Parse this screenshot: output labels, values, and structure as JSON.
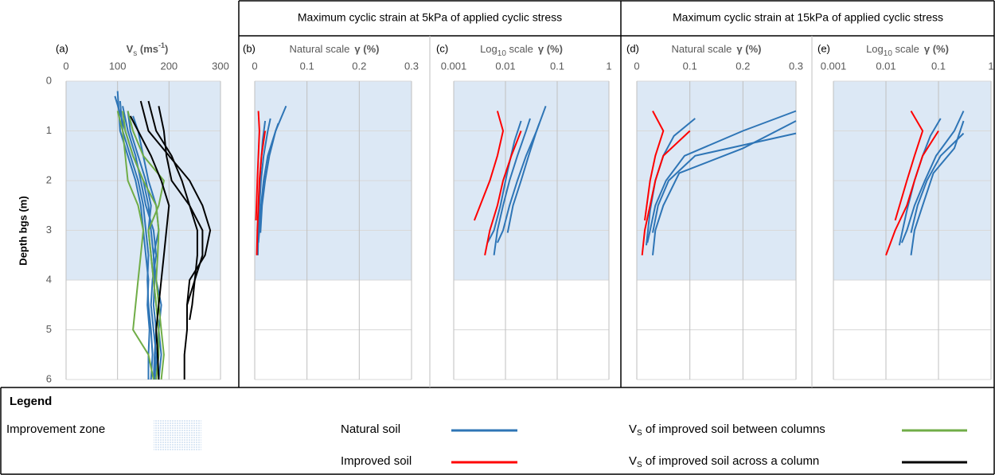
{
  "headers": [
    "Maximum cyclic strain at 5kPa of applied cyclic stress",
    "Maximum cyclic strain at 15kPa of applied cyclic stress"
  ],
  "chart_data": [
    {
      "type": "line",
      "panel": "(a)",
      "axis_label": [
        "V",
        "s",
        " (ms",
        "-1",
        ")"
      ],
      "ylabel": "Depth bgs (m)",
      "xlim": [
        0,
        300
      ],
      "xticks": [
        0,
        100,
        200,
        300
      ],
      "ylim": [
        0,
        6
      ],
      "yticks": [
        0,
        1,
        2,
        3,
        4,
        5,
        6
      ],
      "y_reversed": true,
      "ytick_labels": true,
      "grid": true,
      "zone": [
        0,
        4
      ],
      "zone_color": "#dce8f5",
      "series": [
        {
          "color": "#2e75b6",
          "depth": [
            0.4,
            1,
            1.5,
            2,
            2.5,
            3,
            3.5,
            4,
            4.5,
            5,
            5.5,
            6
          ],
          "values": [
            105,
            110,
            125,
            140,
            150,
            155,
            160,
            158,
            160,
            165,
            168,
            165
          ]
        },
        {
          "color": "#2e75b6",
          "depth": [
            0.3,
            1,
            1.5,
            2,
            2.5,
            3,
            3.5,
            4,
            4.5,
            5,
            5.5,
            6
          ],
          "values": [
            95,
            115,
            130,
            150,
            160,
            165,
            170,
            172,
            170,
            175,
            172,
            170
          ]
        },
        {
          "color": "#2e75b6",
          "depth": [
            0.5,
            1,
            1.5,
            2,
            2.5,
            3,
            3.5,
            4,
            4.5,
            5,
            5.5,
            6
          ],
          "values": [
            110,
            120,
            135,
            145,
            155,
            170,
            175,
            168,
            165,
            170,
            175,
            172
          ]
        },
        {
          "color": "#2e75b6",
          "depth": [
            0.6,
            1,
            1.5,
            2,
            2.5,
            3,
            3.5,
            4,
            4.5,
            5,
            5.5,
            6
          ],
          "values": [
            120,
            125,
            140,
            155,
            165,
            160,
            165,
            170,
            175,
            180,
            178,
            175
          ]
        },
        {
          "color": "#2e75b6",
          "depth": [
            0.2,
            1,
            1.5,
            2,
            2.5,
            3,
            3.5,
            4,
            4.5,
            5,
            5.5,
            6
          ],
          "values": [
            100,
            105,
            120,
            135,
            145,
            150,
            155,
            160,
            158,
            162,
            160,
            160
          ]
        },
        {
          "color": "#2e75b6",
          "depth": [
            0.7,
            1,
            1.5,
            2,
            2.5,
            3,
            3.5,
            4,
            4.5,
            5,
            5.5,
            6
          ],
          "values": [
            130,
            140,
            150,
            160,
            175,
            180,
            170,
            175,
            185,
            180,
            185,
            180
          ]
        },
        {
          "color": "#70ad47",
          "depth": [
            0.6,
            1,
            1.5,
            2,
            2.5,
            3,
            3.5,
            4,
            4.5,
            5,
            5.5,
            6
          ],
          "values": [
            110,
            115,
            130,
            150,
            175,
            180,
            178,
            175,
            180,
            185,
            190,
            185
          ]
        },
        {
          "color": "#70ad47",
          "depth": [
            0.6,
            1,
            1.5,
            2,
            2.5,
            3,
            3.5,
            4,
            4.5,
            5,
            5.5,
            6
          ],
          "values": [
            100,
            110,
            115,
            120,
            140,
            150,
            145,
            140,
            135,
            130,
            160,
            170
          ]
        },
        {
          "color": "#70ad47",
          "depth": [
            0.6,
            1,
            1.5,
            2,
            2.5,
            3,
            3.5,
            4,
            4.5,
            5,
            5.5,
            6
          ],
          "values": [
            120,
            130,
            150,
            190,
            180,
            160,
            165,
            170,
            175,
            180,
            180,
            175
          ]
        },
        {
          "color": "#000000",
          "depth": [
            0.4,
            1,
            1.5,
            2,
            2.5,
            3,
            3.5,
            4,
            4.5,
            5,
            5.5,
            6
          ],
          "values": [
            145,
            160,
            200,
            240,
            265,
            280,
            270,
            240,
            235,
            235,
            230,
            230
          ]
        },
        {
          "color": "#000000",
          "depth": [
            0.4,
            1,
            1.5,
            2,
            2.5,
            3,
            3.5,
            4,
            4.5,
            4.8
          ],
          "values": [
            160,
            175,
            205,
            225,
            240,
            265,
            265,
            250,
            245,
            240
          ]
        },
        {
          "color": "#000000",
          "depth": [
            0.5,
            1,
            1.5,
            2,
            2.5,
            3,
            3.5,
            4,
            4.5,
            5
          ],
          "values": [
            180,
            190,
            195,
            205,
            240,
            255,
            255,
            250,
            235,
            235
          ]
        },
        {
          "color": "#000000",
          "depth": [
            0.7,
            1,
            1.5,
            2,
            2.5,
            3,
            3.5,
            4,
            4.5,
            5,
            5.5,
            6
          ],
          "values": [
            125,
            140,
            165,
            185,
            200,
            195,
            190,
            185,
            180,
            175,
            178,
            180
          ]
        }
      ]
    },
    {
      "type": "line",
      "panel": "(b)",
      "scale_label": [
        "Natural scale"
      ],
      "axis_label": "γ (%)",
      "xlim": [
        0,
        0.3
      ],
      "xticks": [
        0,
        0.1,
        0.2,
        0.3
      ],
      "ylim": [
        0,
        6
      ],
      "yticks": [
        0,
        1,
        2,
        3,
        4,
        5,
        6
      ],
      "y_reversed": true,
      "ytick_labels": false,
      "grid": true,
      "zone": [
        0,
        4
      ],
      "zone_color": "#dce8f5",
      "series": [
        {
          "color": "#2e75b6",
          "depth": [
            0.5,
            1,
            1.5,
            2,
            2.5,
            3,
            3.25
          ],
          "values": [
            0.06,
            0.04,
            0.025,
            0.017,
            0.012,
            0.009,
            0.007
          ]
        },
        {
          "color": "#2e75b6",
          "depth": [
            0.75,
            1,
            1.5,
            2,
            2.5,
            3,
            3.5
          ],
          "values": [
            0.03,
            0.025,
            0.017,
            0.012,
            0.009,
            0.007,
            0.006
          ]
        },
        {
          "color": "#2e75b6",
          "depth": [
            0.85,
            1,
            1.5,
            2,
            2.5,
            3.05
          ],
          "values": [
            0.045,
            0.04,
            0.028,
            0.02,
            0.014,
            0.011
          ]
        },
        {
          "color": "#2e75b6",
          "depth": [
            0.8,
            1.2,
            1.8,
            2.5,
            3,
            3.25
          ],
          "values": [
            0.02,
            0.015,
            0.011,
            0.008,
            0.006,
            0.0045
          ]
        },
        {
          "color": "#ff0000",
          "depth": [
            0.6,
            1,
            1.5,
            2,
            2.8
          ],
          "values": [
            0.007,
            0.009,
            0.007,
            0.005,
            0.0025
          ]
        },
        {
          "color": "#ff0000",
          "depth": [
            1,
            1.5,
            2,
            2.5,
            3,
            3.5
          ],
          "values": [
            0.02,
            0.013,
            0.009,
            0.007,
            0.005,
            0.004
          ]
        }
      ]
    },
    {
      "type": "line",
      "panel": "(c)",
      "scale_label": [
        "Log",
        "10",
        " scale"
      ],
      "axis_label": "γ (%)",
      "xscale": "log",
      "xlim": [
        0.001,
        1
      ],
      "xticks": [
        0.001,
        0.01,
        0.1,
        1
      ],
      "ylim": [
        0,
        6
      ],
      "yticks": [
        0,
        1,
        2,
        3,
        4,
        5,
        6
      ],
      "y_reversed": true,
      "ytick_labels": false,
      "grid": true,
      "zone": [
        0,
        4
      ],
      "zone_color": "#dce8f5",
      "series": [
        {
          "color": "#2e75b6",
          "depth": [
            0.5,
            1,
            1.5,
            2,
            2.5,
            3,
            3.25
          ],
          "values": [
            0.06,
            0.04,
            0.025,
            0.017,
            0.012,
            0.009,
            0.007
          ]
        },
        {
          "color": "#2e75b6",
          "depth": [
            0.75,
            1,
            1.5,
            2,
            2.5,
            3,
            3.5
          ],
          "values": [
            0.03,
            0.025,
            0.017,
            0.012,
            0.009,
            0.007,
            0.006
          ]
        },
        {
          "color": "#2e75b6",
          "depth": [
            0.85,
            1,
            1.5,
            2,
            2.5,
            3.05
          ],
          "values": [
            0.045,
            0.04,
            0.028,
            0.02,
            0.014,
            0.011
          ]
        },
        {
          "color": "#2e75b6",
          "depth": [
            0.8,
            1.2,
            1.8,
            2.5,
            3,
            3.25
          ],
          "values": [
            0.02,
            0.015,
            0.011,
            0.008,
            0.006,
            0.0045
          ]
        },
        {
          "color": "#ff0000",
          "depth": [
            0.6,
            1,
            1.5,
            2,
            2.8
          ],
          "values": [
            0.007,
            0.009,
            0.007,
            0.005,
            0.0025
          ]
        },
        {
          "color": "#ff0000",
          "depth": [
            1,
            1.5,
            2,
            2.5,
            3,
            3.5
          ],
          "values": [
            0.02,
            0.013,
            0.009,
            0.007,
            0.005,
            0.004
          ]
        }
      ]
    },
    {
      "type": "line",
      "panel": "(d)",
      "scale_label": [
        "Natural scale"
      ],
      "axis_label": "γ (%)",
      "xlim": [
        0,
        0.3
      ],
      "xticks": [
        0,
        0.1,
        0.2,
        0.3
      ],
      "ylim": [
        0,
        6
      ],
      "yticks": [
        0,
        1,
        2,
        3,
        4,
        5,
        6
      ],
      "y_reversed": true,
      "ytick_labels": false,
      "grid": true,
      "zone": [
        0,
        4
      ],
      "zone_color": "#dce8f5",
      "series": [
        {
          "color": "#2e75b6",
          "depth": [
            0.6,
            1,
            1.5,
            2,
            2.5,
            3,
            3.25
          ],
          "values": [
            0.3,
            0.2,
            0.09,
            0.055,
            0.035,
            0.025,
            0.02
          ]
        },
        {
          "color": "#2e75b6",
          "depth": [
            0.8,
            1.35,
            1.85,
            2.5,
            3,
            3.5
          ],
          "values": [
            0.3,
            0.2,
            0.08,
            0.05,
            0.035,
            0.03
          ]
        },
        {
          "color": "#2e75b6",
          "depth": [
            1.05,
            1.5,
            2,
            2.5,
            3.05
          ],
          "values": [
            0.3,
            0.11,
            0.06,
            0.04,
            0.03
          ]
        },
        {
          "color": "#2e75b6",
          "depth": [
            0.75,
            1.1,
            1.5,
            2,
            2.6,
            3.3
          ],
          "values": [
            0.11,
            0.07,
            0.05,
            0.035,
            0.025,
            0.018
          ]
        },
        {
          "color": "#ff0000",
          "depth": [
            0.6,
            1,
            1.5,
            2,
            2.8
          ],
          "values": [
            0.03,
            0.05,
            0.035,
            0.025,
            0.015
          ]
        },
        {
          "color": "#ff0000",
          "depth": [
            1,
            1.5,
            2,
            2.5,
            3,
            3.5
          ],
          "values": [
            0.1,
            0.05,
            0.035,
            0.025,
            0.015,
            0.01
          ]
        }
      ]
    },
    {
      "type": "line",
      "panel": "(e)",
      "scale_label": [
        "Log",
        "10",
        " scale"
      ],
      "axis_label": "γ (%)",
      "xscale": "log",
      "xlim": [
        0.001,
        1
      ],
      "xticks": [
        0.001,
        0.01,
        0.1,
        1
      ],
      "ylim": [
        0,
        6
      ],
      "yticks": [
        0,
        1,
        2,
        3,
        4,
        5,
        6
      ],
      "y_reversed": true,
      "ytick_labels": false,
      "grid": true,
      "zone": [
        0,
        4
      ],
      "zone_color": "#dce8f5",
      "series": [
        {
          "color": "#2e75b6",
          "depth": [
            0.6,
            1,
            1.5,
            2,
            2.5,
            3,
            3.25
          ],
          "values": [
            0.3,
            0.2,
            0.09,
            0.055,
            0.035,
            0.025,
            0.02
          ]
        },
        {
          "color": "#2e75b6",
          "depth": [
            0.8,
            1.35,
            1.85,
            2.5,
            3,
            3.5
          ],
          "values": [
            0.3,
            0.2,
            0.08,
            0.05,
            0.035,
            0.03
          ]
        },
        {
          "color": "#2e75b6",
          "depth": [
            1.05,
            1.5,
            2,
            2.5,
            3.05
          ],
          "values": [
            0.3,
            0.11,
            0.06,
            0.04,
            0.03
          ]
        },
        {
          "color": "#2e75b6",
          "depth": [
            0.75,
            1.1,
            1.5,
            2,
            2.6,
            3.3
          ],
          "values": [
            0.11,
            0.07,
            0.05,
            0.035,
            0.025,
            0.018
          ]
        },
        {
          "color": "#ff0000",
          "depth": [
            0.6,
            1,
            1.5,
            2,
            2.8
          ],
          "values": [
            0.03,
            0.05,
            0.035,
            0.025,
            0.015
          ]
        },
        {
          "color": "#ff0000",
          "depth": [
            1,
            1.5,
            2,
            2.5,
            3,
            3.5
          ],
          "values": [
            0.1,
            0.05,
            0.035,
            0.025,
            0.015,
            0.01
          ]
        }
      ]
    }
  ],
  "legend": {
    "title": "Legend",
    "zone": {
      "label": "Improvement zone",
      "color": "#dce8f5"
    },
    "natural": {
      "label": "Natural soil",
      "color": "#2e75b6"
    },
    "improved": {
      "label": "Improved soil",
      "color": "#ff0000"
    },
    "between": {
      "label": [
        "V",
        "S",
        " of improved soil between columns"
      ],
      "color": "#70ad47"
    },
    "across": {
      "label": [
        "V",
        "S",
        " of improved soil across a column"
      ],
      "color": "#000000"
    }
  }
}
